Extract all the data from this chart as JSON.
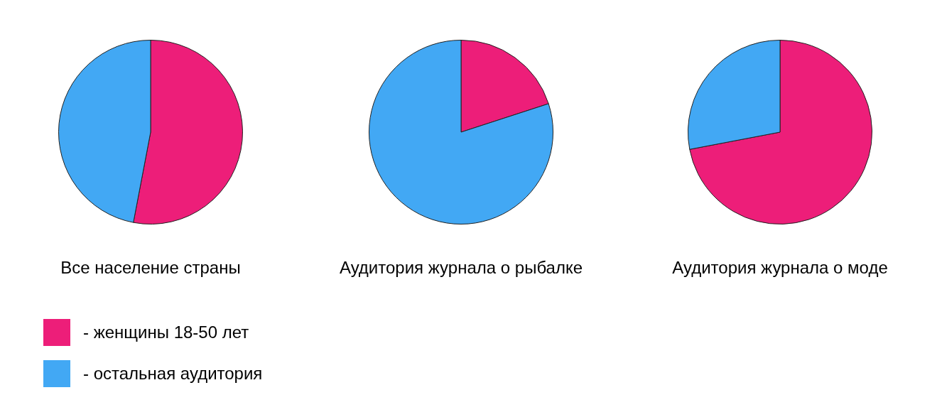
{
  "chart_data": [
    {
      "type": "pie",
      "title": "Все население страны",
      "categories": [
        "- женщины 18-50 лет",
        "- остальная аудитория"
      ],
      "values": [
        53,
        47
      ],
      "colors": [
        "#ed1e79",
        "#42a8f4"
      ],
      "legend": "bottom"
    },
    {
      "type": "pie",
      "title": "Аудитория журнала о рыбалке",
      "categories": [
        null,
        null
      ],
      "values": [
        20,
        80
      ],
      "colors": [
        "#ed1e79",
        "#42a8f4"
      ]
    },
    {
      "type": "pie",
      "title": "Аудитория журнала о моде",
      "categories": [
        null,
        null
      ],
      "values": [
        72,
        28
      ],
      "colors": [
        "#ed1e79",
        "#42a8f4"
      ]
    }
  ]
}
